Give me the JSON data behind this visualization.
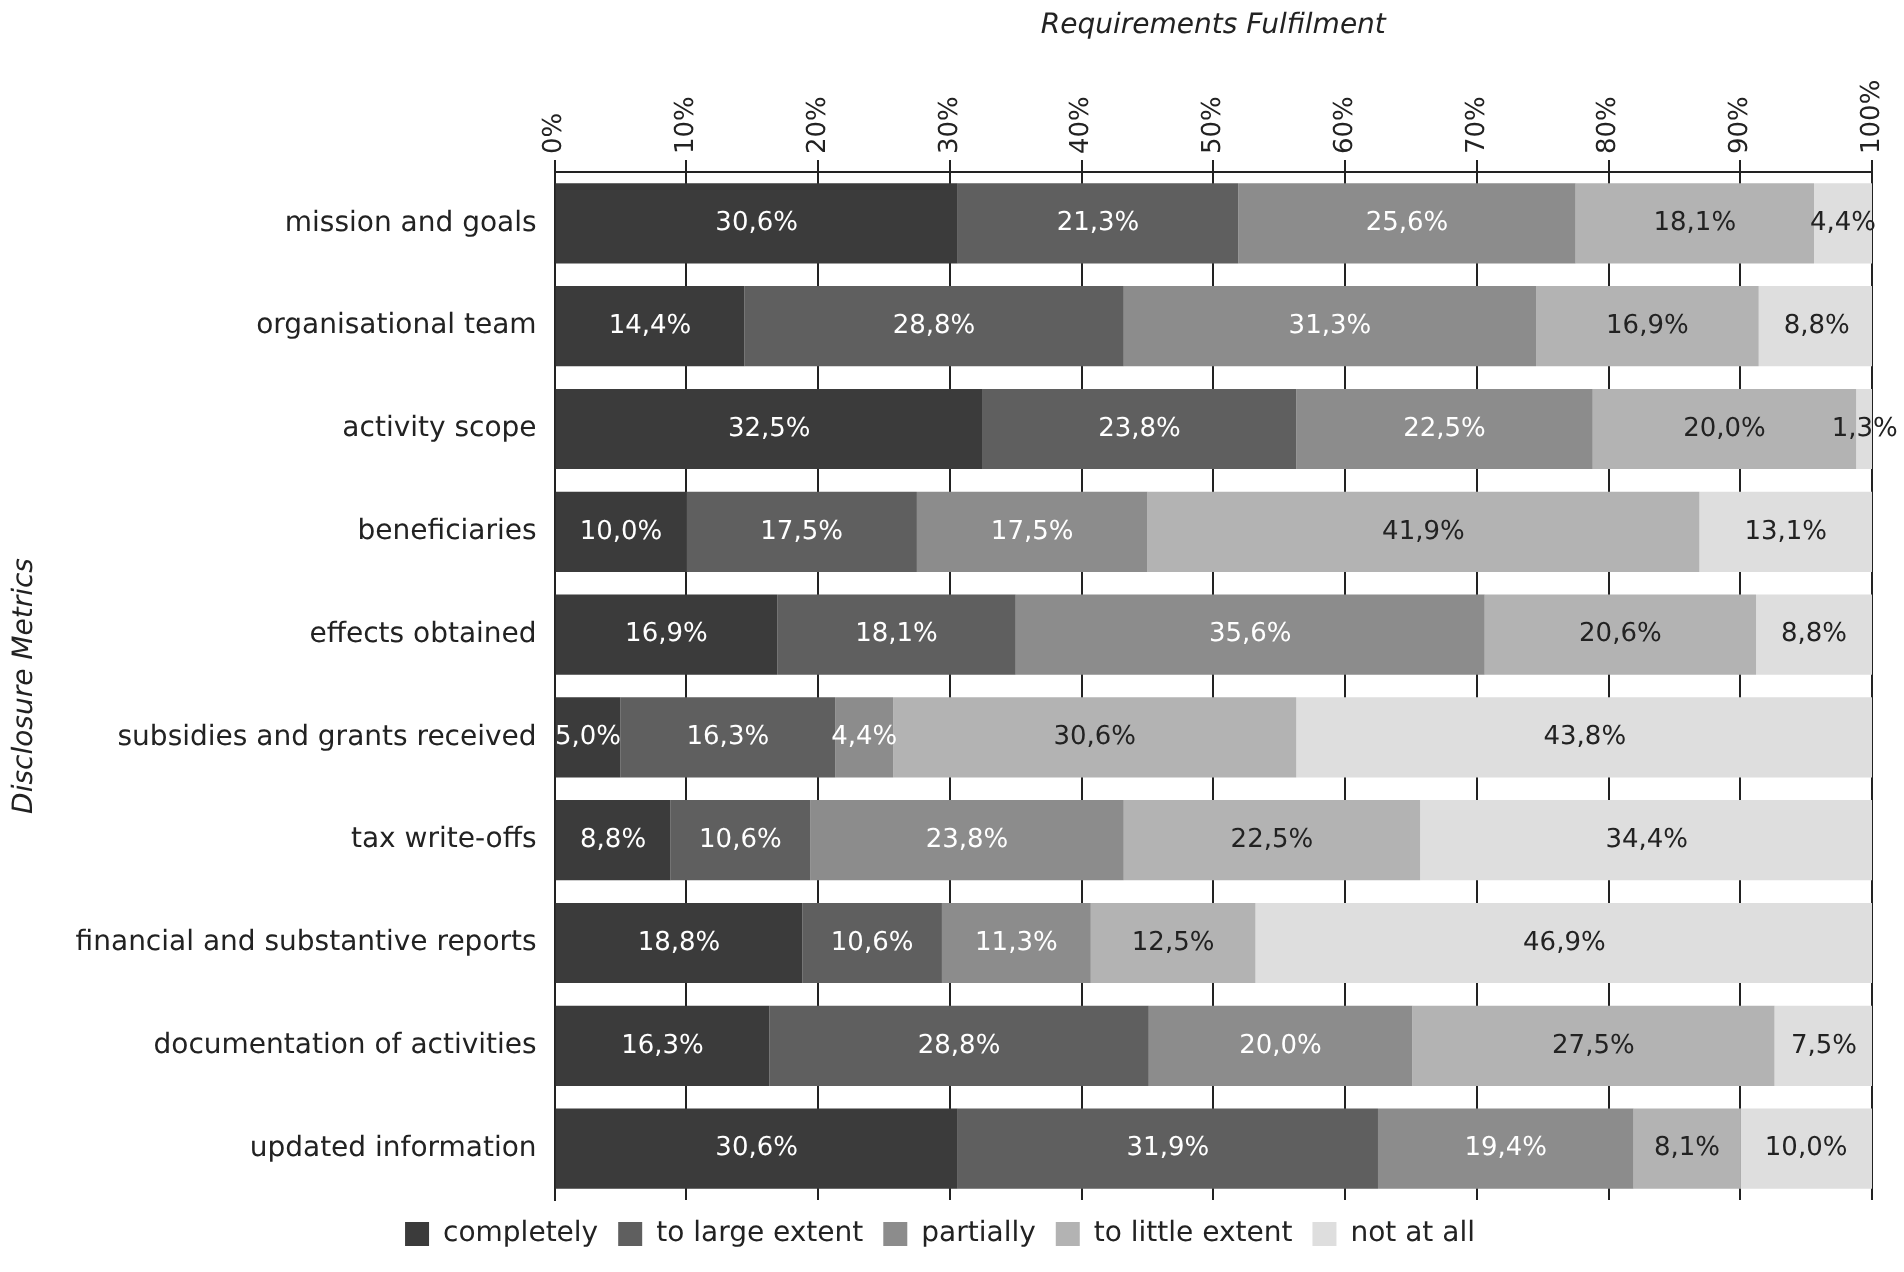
{
  "chart_data": {
    "type": "bar",
    "orientation": "horizontal",
    "stacked": true,
    "xlabel": "Requirements Fulfilment",
    "ylabel": "Disclosure Metrics",
    "categories": [
      "mission and goals",
      "organisational team",
      "activity scope",
      "beneficiaries",
      "effects obtained",
      "subsidies and grants received",
      "tax write-offs",
      "financial and substantive reports",
      "documentation of activities",
      "updated information"
    ],
    "xlim": [
      0,
      100
    ],
    "xticks": [
      {
        "value": 0,
        "label": "0%"
      },
      {
        "value": 10,
        "label": "10%"
      },
      {
        "value": 20,
        "label": "20%"
      },
      {
        "value": 30,
        "label": "30%"
      },
      {
        "value": 40,
        "label": "40%"
      },
      {
        "value": 50,
        "label": "50%"
      },
      {
        "value": 60,
        "label": "60%"
      },
      {
        "value": 70,
        "label": "70%"
      },
      {
        "value": 80,
        "label": "80%"
      },
      {
        "value": 90,
        "label": "90%"
      },
      {
        "value": 100,
        "label": "100%"
      }
    ],
    "grid": "x",
    "legend": "bottom",
    "series": [
      {
        "name": "completely",
        "color": "#3b3b3b",
        "values": [
          30.6,
          14.4,
          32.5,
          10.0,
          16.9,
          5.0,
          8.8,
          18.8,
          16.3,
          30.6
        ],
        "value_labels": [
          "30,6%",
          "14,4%",
          "32,5%",
          "10,0%",
          "16,9%",
          "5,0%",
          "8,8%",
          "18,8%",
          "16,3%",
          "30,6%"
        ]
      },
      {
        "name": "to large extent",
        "color": "#5f5f5f",
        "values": [
          21.3,
          28.8,
          23.8,
          17.5,
          18.1,
          16.3,
          10.6,
          10.6,
          28.8,
          31.9
        ],
        "value_labels": [
          "21,3%",
          "28,8%",
          "23,8%",
          "17,5%",
          "18,1%",
          "16,3%",
          "10,6%",
          "10,6%",
          "28,8%",
          "31,9%"
        ]
      },
      {
        "name": "partially",
        "color": "#8c8c8c",
        "values": [
          25.6,
          31.3,
          22.5,
          17.5,
          35.6,
          4.4,
          23.8,
          11.3,
          20.0,
          19.4
        ],
        "value_labels": [
          "25,6%",
          "31,3%",
          "22,5%",
          "17,5%",
          "35,6%",
          "4,4%",
          "23,8%",
          "11,3%",
          "20,0%",
          "19,4%"
        ]
      },
      {
        "name": "to little extent",
        "color": "#b3b3b3",
        "values": [
          18.1,
          16.9,
          20.0,
          41.9,
          20.6,
          30.6,
          22.5,
          12.5,
          27.5,
          8.1
        ],
        "value_labels": [
          "18,1%",
          "16,9%",
          "20,0%",
          "41,9%",
          "20,6%",
          "30,6%",
          "22,5%",
          "12,5%",
          "27,5%",
          "8,1%"
        ]
      },
      {
        "name": "not at all",
        "color": "#dedede",
        "values": [
          4.4,
          8.8,
          1.3,
          13.1,
          8.8,
          43.8,
          34.4,
          46.9,
          7.5,
          10.0
        ],
        "value_labels": [
          "4,4%",
          "8,8%",
          "1,3%",
          "13,1%",
          "8,8%",
          "43,8%",
          "34,4%",
          "46,9%",
          "7,5%",
          "10,0%"
        ]
      }
    ]
  }
}
